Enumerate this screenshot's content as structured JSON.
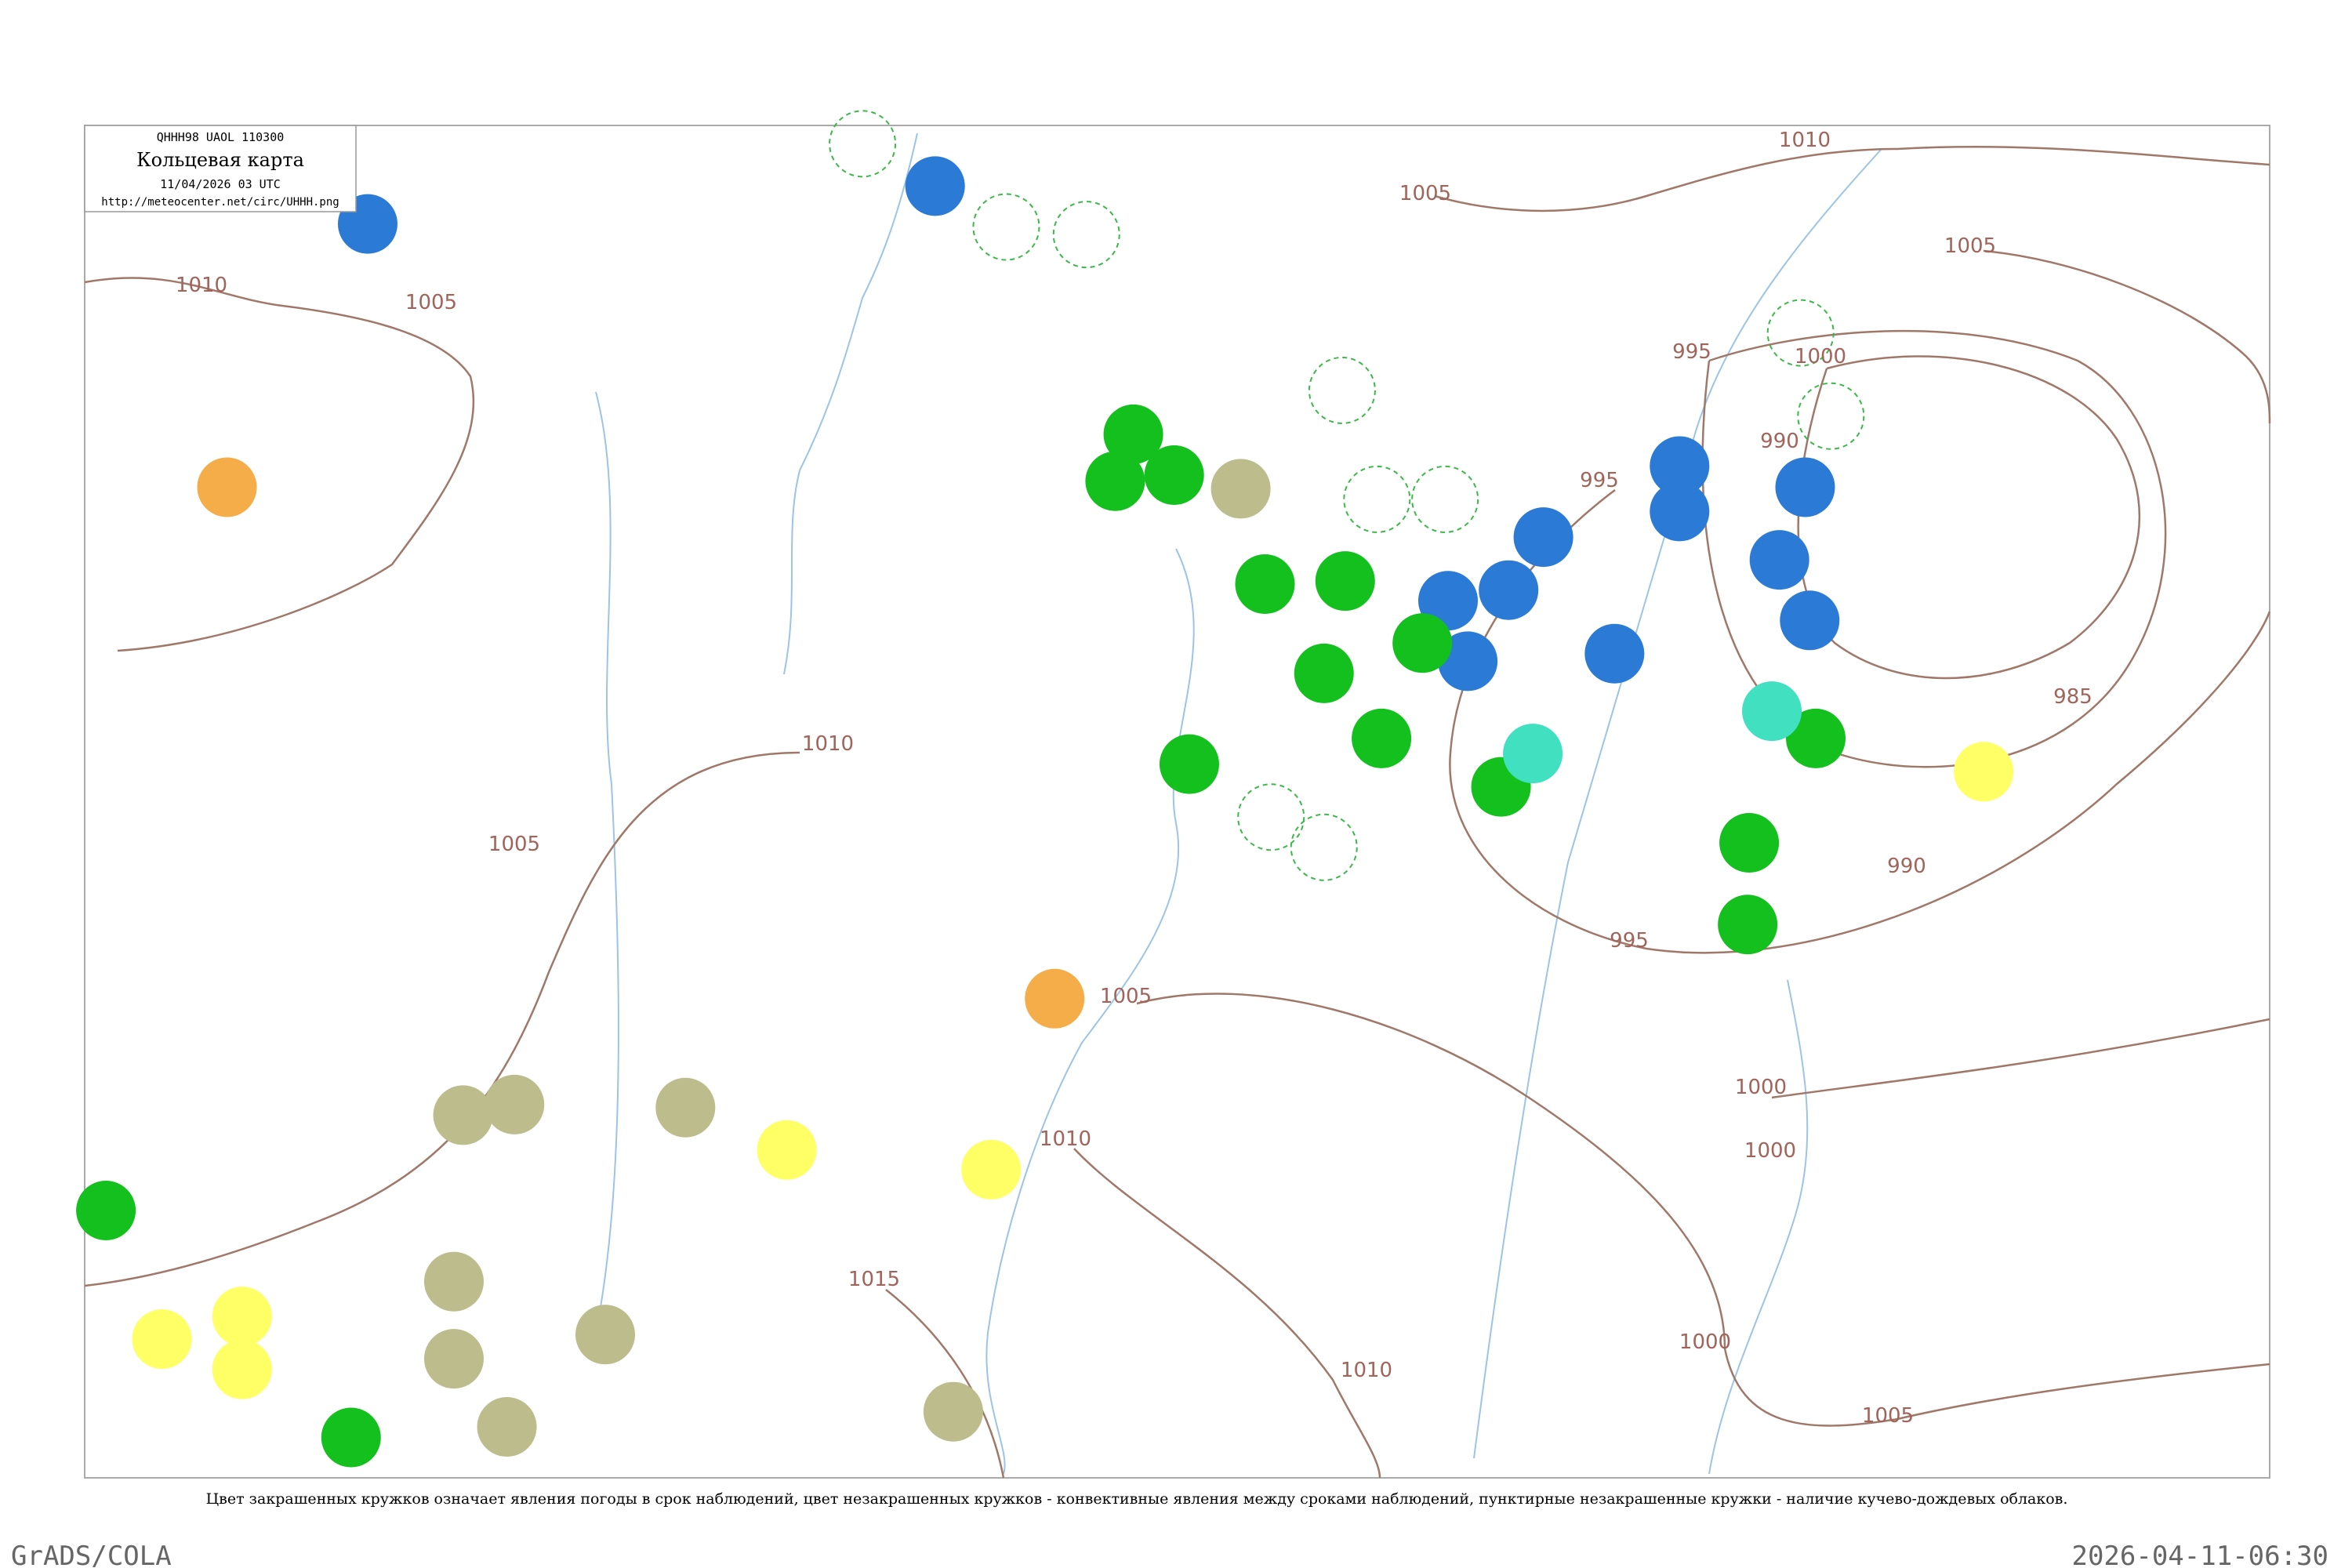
{
  "header": {
    "code": "QHHH98  UAOL  110300",
    "title": "Кольцевая карта",
    "datetime": "11/04/2026 03 UTC",
    "url": "http://meteocenter.net/circ/UHHH.png"
  },
  "isobar_labels": [
    1010,
    1005,
    1005,
    1000,
    995,
    990,
    995,
    985,
    990,
    995,
    1000,
    1000,
    1005,
    1010,
    1005,
    1010,
    1005,
    1005,
    1010,
    1015,
    1010,
    1000
  ],
  "caption": "Цвет закрашенных кружков означает явления погоды в срок наблюдений, цвет незакрашенных кружков - конвективные явления между сроками наблюдений, пунктирные незакрашенные кружки - наличие кучево-дождевых облаков.",
  "footer": {
    "left": "GrADS/COLA",
    "right": "2026-04-11-06:30"
  }
}
